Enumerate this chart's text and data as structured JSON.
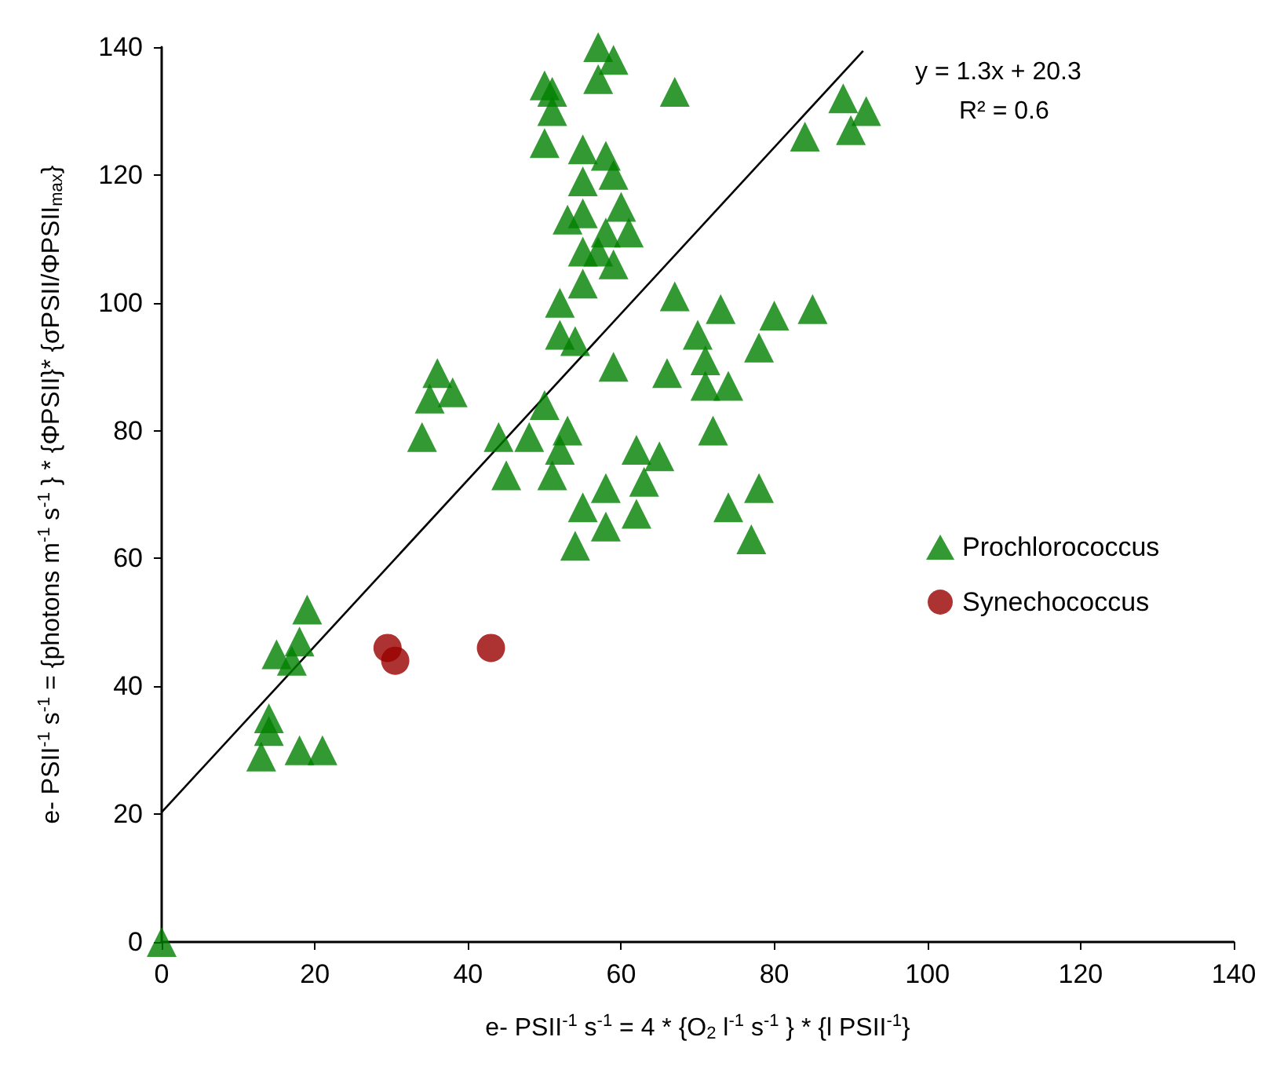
{
  "chart_data": {
    "type": "scatter",
    "xlabel": "e- PSII$^{-1}$ s$^{-1}$ = 4 * {O$_{2}$ l$^{-1}$ s$^{-1}$ } * {l PSII$^{-1}$}",
    "ylabel": "e- PSII$^{-1}$ s$^{-1}$ = {photons m$^{-1}$ s$^{-1}$ } * {ΦPSII}* {σPSII/ΦPSII$_{max}$}",
    "annotations": [
      "y = 1.3x + 20.3",
      "R² = 0.6"
    ],
    "xlim": [
      0,
      140
    ],
    "xticks": [
      0,
      20,
      40,
      60,
      80,
      100,
      120,
      140
    ],
    "ylim": [
      0,
      140
    ],
    "yticks": [
      0,
      20,
      40,
      60,
      80,
      100,
      120,
      140
    ],
    "legend": "right",
    "series": [
      {
        "name": "Prochlorococcus",
        "color": "#008000",
        "marker": "triangle",
        "x": [
          0,
          57,
          59,
          57,
          67,
          50,
          51,
          51,
          50,
          55,
          58,
          59,
          55,
          60,
          55,
          53,
          61,
          58,
          57,
          55,
          59,
          55,
          52,
          67,
          52,
          54,
          59,
          66,
          73,
          80,
          85,
          70,
          78,
          71,
          71,
          74,
          72,
          50,
          44,
          48,
          53,
          52,
          45,
          51,
          62,
          65,
          63,
          58,
          55,
          62,
          78,
          74,
          58,
          54,
          77,
          36,
          38,
          35,
          34,
          19,
          18,
          15,
          17,
          14,
          14,
          13,
          18,
          21,
          89,
          84,
          90,
          92
        ],
        "values": [
          0,
          140,
          138,
          135,
          133,
          134,
          133,
          130,
          125,
          124,
          123,
          120,
          119,
          115,
          114,
          113,
          111,
          111,
          108,
          108,
          106,
          103,
          100,
          101,
          95,
          94,
          90,
          89,
          99,
          98,
          99,
          95,
          93,
          91,
          87,
          87,
          80,
          84,
          79,
          79,
          80,
          77,
          73,
          73,
          77,
          76,
          72,
          71,
          68,
          67,
          71,
          68,
          65,
          62,
          63,
          89,
          86,
          85,
          79,
          52,
          47,
          45,
          44,
          35,
          33,
          29,
          30,
          30,
          132,
          126,
          127,
          130
        ]
      },
      {
        "name": "Synechococcus",
        "color": "#990000",
        "marker": "circle",
        "x": [
          29.5,
          30.5,
          43
        ],
        "values": [
          46,
          44,
          46
        ]
      },
      {
        "type": "line",
        "color": "#000000",
        "marker": "none",
        "x": [
          0,
          91.6
        ],
        "values": [
          20.3,
          139.4
        ]
      }
    ]
  }
}
